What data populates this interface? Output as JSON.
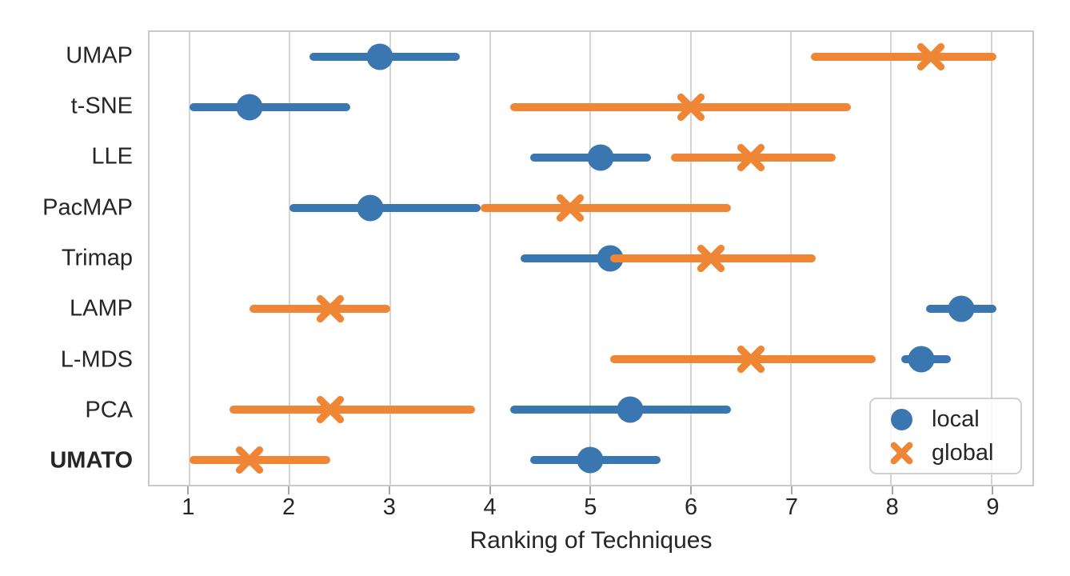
{
  "chart_data": {
    "type": "scatter",
    "subtype": "dot-plot-with-error-bars",
    "title": "",
    "xlabel": "Ranking of Techniques",
    "x_ticks": [
      1,
      2,
      3,
      4,
      5,
      6,
      7,
      8,
      9
    ],
    "xlim": [
      0.6,
      9.41
    ],
    "grid": "vertical-on",
    "categories": [
      "UMAP",
      "t-SNE",
      "LLE",
      "PacMAP",
      "Trimap",
      "LAMP",
      "L-MDS",
      "PCA",
      "UMATO"
    ],
    "highlight_category": "UMATO",
    "series": [
      {
        "name": "local",
        "marker": "circle",
        "color": "#3A76AF",
        "values": [
          2.9,
          1.6,
          5.1,
          2.8,
          5.2,
          8.7,
          8.3,
          5.4,
          5.0
        ],
        "ci_low": [
          2.2,
          1.0,
          4.4,
          2.0,
          4.3,
          8.35,
          8.1,
          4.2,
          4.4
        ],
        "ci_high": [
          3.7,
          2.6,
          5.6,
          3.9,
          5.8,
          9.05,
          8.6,
          6.4,
          5.7
        ]
      },
      {
        "name": "global",
        "marker": "x",
        "color": "#EF8636",
        "values": [
          8.4,
          6.0,
          6.6,
          4.8,
          6.2,
          2.4,
          6.6,
          2.4,
          1.6
        ],
        "ci_low": [
          7.2,
          4.2,
          5.8,
          3.9,
          5.2,
          1.6,
          5.2,
          1.4,
          1.0
        ],
        "ci_high": [
          9.05,
          7.6,
          7.45,
          6.4,
          7.25,
          3.0,
          7.85,
          3.85,
          2.4
        ]
      }
    ],
    "legend": {
      "position": "lower-right",
      "items": [
        {
          "label": "local",
          "marker": "circle"
        },
        {
          "label": "global",
          "marker": "x"
        }
      ]
    }
  }
}
